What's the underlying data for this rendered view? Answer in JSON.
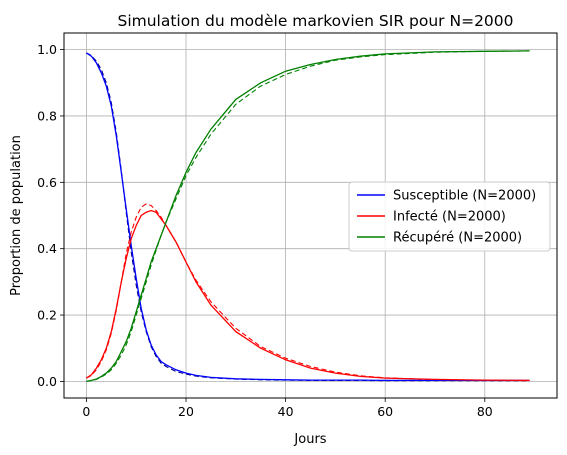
{
  "chart_data": {
    "type": "line",
    "title": "Simulation du modèle markovien SIR pour N=2000",
    "xlabel": "Jours",
    "ylabel": "Proportion de population",
    "xlim": [
      -4.5,
      94.5
    ],
    "ylim": [
      -0.05,
      1.05
    ],
    "xticks": [
      0,
      20,
      40,
      60,
      80
    ],
    "yticks": [
      0.0,
      0.2,
      0.4,
      0.6,
      0.8,
      1.0
    ],
    "xtick_labels": [
      "0",
      "20",
      "40",
      "60",
      "80"
    ],
    "ytick_labels": [
      "0.0",
      "0.2",
      "0.4",
      "0.6",
      "0.8",
      "1.0"
    ],
    "grid": true,
    "legend_position": "center-right",
    "x": [
      0,
      1,
      2,
      3,
      4,
      5,
      6,
      7,
      8,
      9,
      10,
      11,
      12,
      13,
      14,
      15,
      16,
      18,
      20,
      22,
      25,
      30,
      35,
      40,
      45,
      50,
      55,
      60,
      70,
      80,
      89
    ],
    "series": [
      {
        "name": "Susceptible (N=2000)",
        "color": "#0000ff",
        "values": [
          0.99,
          0.98,
          0.96,
          0.93,
          0.89,
          0.83,
          0.74,
          0.63,
          0.52,
          0.41,
          0.31,
          0.22,
          0.155,
          0.11,
          0.08,
          0.06,
          0.05,
          0.035,
          0.025,
          0.018,
          0.012,
          0.008,
          0.006,
          0.005,
          0.004,
          0.004,
          0.004,
          0.003,
          0.003,
          0.003,
          0.003
        ]
      },
      {
        "name": "Infecté (N=2000)",
        "color": "#ff0000",
        "values": [
          0.01,
          0.02,
          0.04,
          0.065,
          0.1,
          0.15,
          0.22,
          0.3,
          0.37,
          0.43,
          0.47,
          0.5,
          0.51,
          0.515,
          0.51,
          0.49,
          0.47,
          0.42,
          0.36,
          0.3,
          0.23,
          0.15,
          0.1,
          0.065,
          0.04,
          0.025,
          0.015,
          0.01,
          0.006,
          0.004,
          0.003
        ]
      },
      {
        "name": "Récupéré (N=2000)",
        "color": "#008000",
        "values": [
          0.0,
          0.003,
          0.007,
          0.015,
          0.025,
          0.04,
          0.06,
          0.09,
          0.12,
          0.16,
          0.21,
          0.26,
          0.31,
          0.36,
          0.4,
          0.44,
          0.48,
          0.56,
          0.63,
          0.69,
          0.76,
          0.85,
          0.9,
          0.935,
          0.955,
          0.97,
          0.98,
          0.987,
          0.993,
          0.995,
          0.996
        ]
      }
    ],
    "reference_series": [
      {
        "color": "#00008b",
        "style": "dashed",
        "values": [
          0.99,
          0.982,
          0.965,
          0.94,
          0.9,
          0.84,
          0.75,
          0.635,
          0.51,
          0.39,
          0.29,
          0.21,
          0.15,
          0.105,
          0.075,
          0.055,
          0.045,
          0.03,
          0.022,
          0.016,
          0.011,
          0.007,
          0.005,
          0.004,
          0.003,
          0.003,
          0.003,
          0.002,
          0.002,
          0.002,
          0.002
        ]
      },
      {
        "color": "#ff0000",
        "style": "dashed",
        "values": [
          0.01,
          0.018,
          0.035,
          0.06,
          0.095,
          0.145,
          0.215,
          0.3,
          0.385,
          0.45,
          0.495,
          0.525,
          0.535,
          0.53,
          0.515,
          0.495,
          0.47,
          0.42,
          0.36,
          0.305,
          0.24,
          0.16,
          0.105,
          0.07,
          0.045,
          0.028,
          0.017,
          0.011,
          0.005,
          0.003,
          0.002
        ]
      },
      {
        "color": "#008000",
        "style": "dashed",
        "values": [
          0.0,
          0.002,
          0.006,
          0.013,
          0.022,
          0.035,
          0.055,
          0.08,
          0.11,
          0.15,
          0.2,
          0.25,
          0.3,
          0.35,
          0.395,
          0.44,
          0.48,
          0.55,
          0.62,
          0.675,
          0.745,
          0.835,
          0.89,
          0.925,
          0.95,
          0.968,
          0.978,
          0.985,
          0.992,
          0.995,
          0.996
        ]
      }
    ]
  }
}
